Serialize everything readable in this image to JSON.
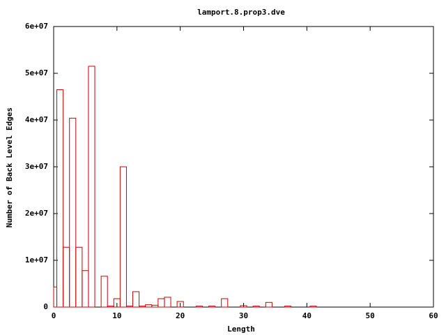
{
  "chart_data": {
    "type": "bar",
    "title": "lamport.8.prop3.dve",
    "x_label": "Length",
    "y_label": "Number of Back Level Edges",
    "x": [
      0,
      1,
      2,
      3,
      4,
      5,
      6,
      8,
      9,
      10,
      11,
      12,
      13,
      14,
      15,
      16,
      17,
      18,
      20,
      23,
      25,
      27,
      30,
      32,
      34,
      37,
      41
    ],
    "values": [
      4300000,
      46500000,
      12800000,
      40400000,
      12800000,
      7800000,
      51500000,
      6600000,
      200000,
      1800000,
      30000000,
      200000,
      3300000,
      200000,
      500000,
      400000,
      1800000,
      2100000,
      1200000,
      200000,
      200000,
      1800000,
      300000,
      200000,
      1000000,
      200000,
      200000
    ],
    "color": "#cc0000",
    "xlim": [
      0,
      60
    ],
    "xticks": [
      0,
      10,
      20,
      30,
      40,
      50,
      60
    ],
    "ylim": [
      0,
      60000000
    ],
    "yticks": [
      0,
      {
        "value": 10000000,
        "label": "1e+07"
      },
      {
        "value": 20000000,
        "label": "2e+07"
      },
      {
        "value": 30000000,
        "label": "3e+07"
      },
      {
        "value": 40000000,
        "label": "4e+07"
      },
      {
        "value": 50000000,
        "label": "5e+07"
      },
      {
        "value": 60000000,
        "label": "6e+07"
      }
    ]
  }
}
